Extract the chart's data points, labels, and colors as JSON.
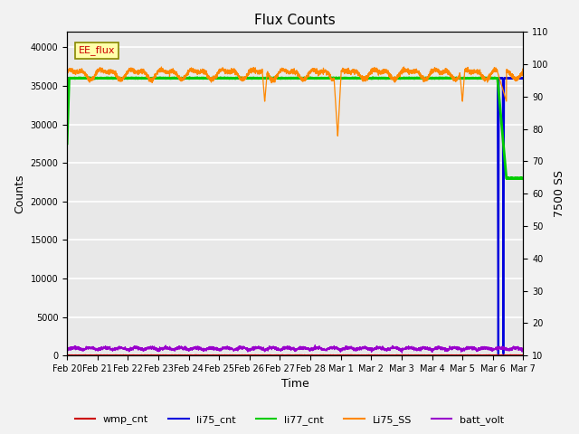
{
  "title": "Flux Counts",
  "xlabel": "Time",
  "ylabel_left": "Counts",
  "ylabel_right": "7500 SS",
  "annotation": "EE_flux",
  "ylim_left": [
    0,
    42000
  ],
  "ylim_right": [
    10,
    110
  ],
  "yticks_left": [
    0,
    5000,
    10000,
    15000,
    20000,
    25000,
    30000,
    35000,
    40000
  ],
  "yticks_right": [
    10,
    20,
    30,
    40,
    50,
    60,
    70,
    80,
    90,
    100,
    110
  ],
  "xtick_labels": [
    "Feb 20",
    "Feb 21",
    "Feb 22",
    "Feb 23",
    "Feb 24",
    "Feb 25",
    "Feb 26",
    "Feb 27",
    "Feb 28",
    "Mar 1",
    "Mar 2",
    "Mar 3",
    "Mar 4",
    "Mar 5",
    "Mar 6",
    "Mar 7"
  ],
  "legend_entries": [
    "wmp_cnt",
    "li75_cnt",
    "li77_cnt",
    "Li75_SS",
    "batt_volt"
  ],
  "legend_colors": [
    "#cc0000",
    "#0000dd",
    "#00cc00",
    "#ff8800",
    "#9900cc"
  ],
  "plot_bg": "#e8e8e8",
  "fig_bg": "#f2f2f2",
  "grid_color": "#ffffff",
  "title_fontsize": 11,
  "tick_fontsize": 7,
  "label_fontsize": 9
}
